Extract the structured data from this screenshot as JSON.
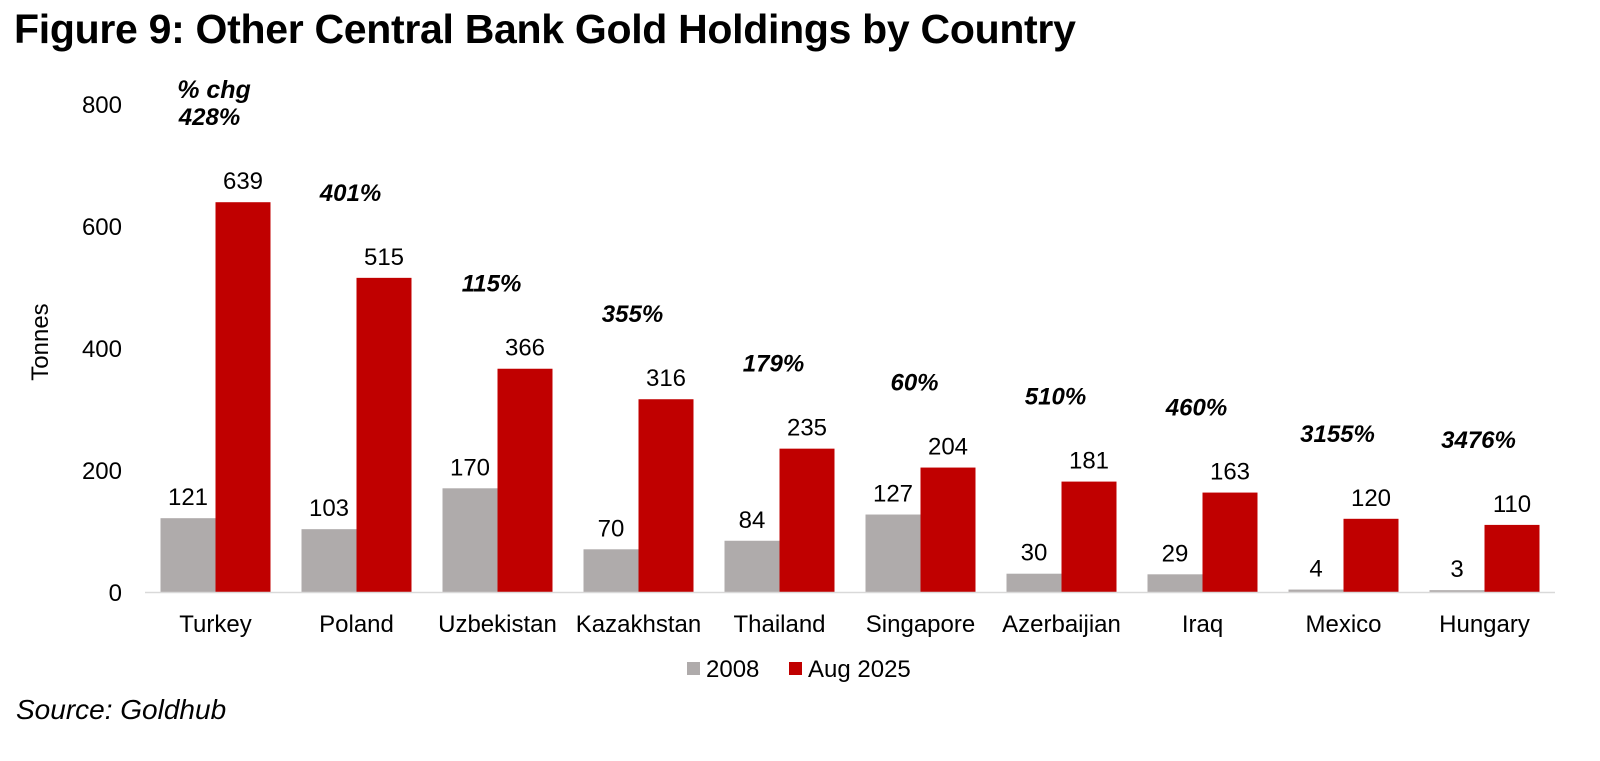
{
  "title": "Figure 9: Other Central Bank Gold Holdings by Country",
  "source": "Source: Goldhub",
  "colors": {
    "series_2008": "#afabab",
    "series_2025": "#c00000",
    "axis": "#d9d9d9"
  },
  "chart_data": {
    "type": "bar",
    "ylabel": "Tonnes",
    "ylim": [
      0,
      800
    ],
    "yticks": [
      "0",
      "200",
      "400",
      "600",
      "800"
    ],
    "grid": false,
    "legend_position": "bottom",
    "pct_header": "% chg",
    "categories": [
      "Turkey",
      "Poland",
      "Uzbekistan",
      "Kazakhstan",
      "Thailand",
      "Singapore",
      "Azerbaijian",
      "Iraq",
      "Mexico",
      "Hungary"
    ],
    "series": [
      {
        "name": "2008",
        "values": [
          121,
          103,
          170,
          70,
          84,
          127,
          30,
          29,
          4,
          3
        ]
      },
      {
        "name": "Aug 2025",
        "values": [
          639,
          515,
          366,
          316,
          235,
          204,
          181,
          163,
          120,
          110
        ]
      }
    ],
    "pct_change": [
      "428%",
      "401%",
      "115%",
      "355%",
      "179%",
      "60%",
      "510%",
      "460%",
      "3155%",
      "3476%"
    ]
  }
}
